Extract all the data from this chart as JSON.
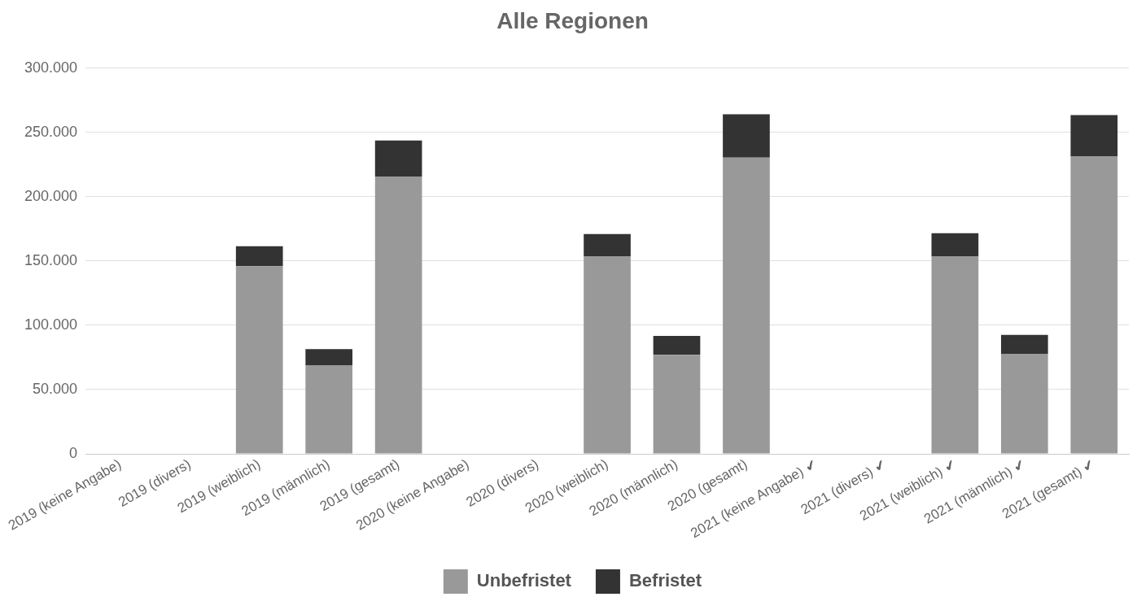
{
  "chart_data": {
    "type": "bar",
    "title": "Alle Regionen",
    "stacked": true,
    "grid": "y",
    "legend": "bottom",
    "categories": [
      "2019 (keine Angabe)",
      "2019 (divers)",
      "2019 (weiblich)",
      "2019 (männlich)",
      "2019 (gesamt)",
      "2020 (keine Angabe)",
      "2020 (divers)",
      "2020 (weiblich)",
      "2020 (männlich)",
      "2020 (gesamt)",
      "2021 (keine Angabe) ✔",
      "2021 (divers) ✔",
      "2021 (weiblich) ✔",
      "2021 (männlich) ✔",
      "2021 (gesamt) ✔"
    ],
    "series": [
      {
        "name": "Unbefristet",
        "color": "#999999",
        "values": [
          0,
          0,
          146000,
          69000,
          215700,
          0,
          0,
          153300,
          77000,
          230400,
          0,
          0,
          153300,
          77800,
          231100
        ]
      },
      {
        "name": "Befristet",
        "color": "#333333",
        "values": [
          0,
          0,
          15400,
          12400,
          27900,
          0,
          0,
          17600,
          14700,
          33700,
          0,
          0,
          18300,
          14700,
          32300
        ]
      }
    ],
    "ylim": [
      0,
      300000
    ],
    "yticks": [
      {
        "value": 0,
        "label": "0"
      },
      {
        "value": 50000,
        "label": "50.000"
      },
      {
        "value": 100000,
        "label": "100.000"
      },
      {
        "value": 150000,
        "label": "150.000"
      },
      {
        "value": 200000,
        "label": "200.000"
      },
      {
        "value": 250000,
        "label": "250.000"
      },
      {
        "value": 300000,
        "label": "300.000"
      }
    ]
  }
}
